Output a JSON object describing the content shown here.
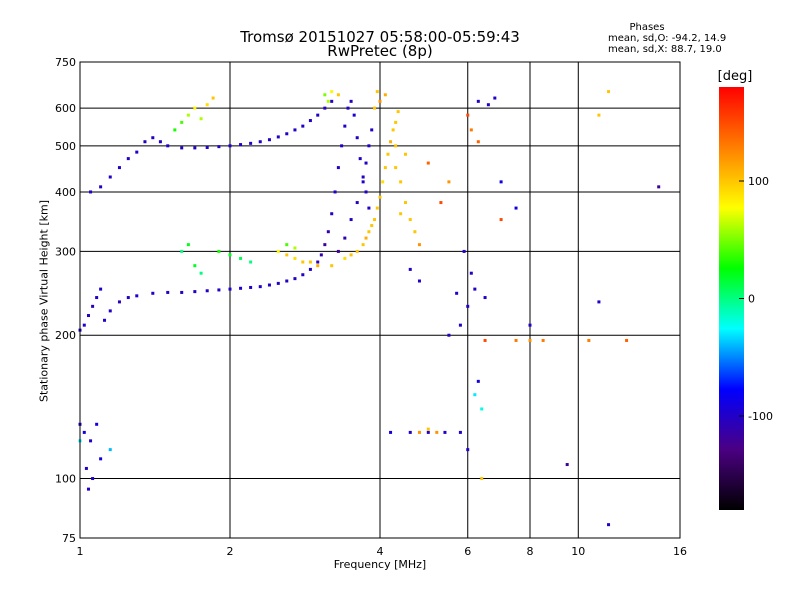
{
  "chart_data": {
    "type": "scatter",
    "title": "Tromsø 20151027 05:58:00-05:59:43",
    "subtitle": "RwPretec (8p)",
    "xlabel": "Frequency [MHz]",
    "ylabel": "Stationary phase Virtual Height [km]",
    "x_scale": "log",
    "y_scale": "log",
    "xlim": [
      1,
      16
    ],
    "ylim": [
      75,
      750
    ],
    "x_ticks": [
      1,
      2,
      4,
      6,
      8,
      10,
      16
    ],
    "x_tick_labels": [
      "1",
      "2",
      "4",
      "6",
      "8",
      "10",
      "16"
    ],
    "y_ticks": [
      75,
      100,
      200,
      300,
      400,
      500,
      600,
      750
    ],
    "y_tick_labels": [
      "75",
      "100",
      "200",
      "300",
      "400",
      "500",
      "600",
      "750"
    ],
    "grid": true,
    "phases_box": {
      "title": "Phases",
      "line1": "mean, sd,O: -94.2, 14.9",
      "line2": "mean, sd,X:  88.7, 19.0"
    },
    "colorbar": {
      "label": "[deg]",
      "ticks": [
        100,
        0,
        -100
      ],
      "tick_labels": [
        "100",
        "0",
        "-100"
      ],
      "range": [
        -180,
        180
      ],
      "colors": [
        "#000000",
        "#4b0082",
        "#0000ff",
        "#00ffff",
        "#00ff00",
        "#ffff00",
        "#ff7f00",
        "#ff0000"
      ]
    },
    "series": [
      {
        "points": [
          [
            1.0,
            205,
            -100
          ],
          [
            1.02,
            210,
            -95
          ],
          [
            1.04,
            220,
            -100
          ],
          [
            1.06,
            230,
            -105
          ],
          [
            1.08,
            240,
            -100
          ],
          [
            1.1,
            250,
            -95
          ],
          [
            1.12,
            215,
            -100
          ],
          [
            1.15,
            225,
            -100
          ],
          [
            1.2,
            235,
            -105
          ],
          [
            1.25,
            240,
            -100
          ],
          [
            1.3,
            242,
            -98
          ],
          [
            1.4,
            245,
            -100
          ],
          [
            1.5,
            246,
            -100
          ],
          [
            1.6,
            246,
            -102
          ],
          [
            1.7,
            247,
            -100
          ],
          [
            1.8,
            248,
            -100
          ],
          [
            1.9,
            249,
            -100
          ],
          [
            2.0,
            250,
            -100
          ],
          [
            2.1,
            251,
            -100
          ],
          [
            2.2,
            252,
            -98
          ],
          [
            2.3,
            253,
            -100
          ],
          [
            2.4,
            255,
            -100
          ],
          [
            2.5,
            257,
            -100
          ],
          [
            2.6,
            260,
            -100
          ],
          [
            2.7,
            263,
            -100
          ],
          [
            2.8,
            268,
            -100
          ],
          [
            2.9,
            275,
            -100
          ],
          [
            3.0,
            285,
            -105
          ],
          [
            3.05,
            295,
            -110
          ],
          [
            3.1,
            310,
            -120
          ],
          [
            3.15,
            330,
            -110
          ],
          [
            3.2,
            360,
            -100
          ],
          [
            3.25,
            400,
            -100
          ],
          [
            3.3,
            450,
            -100
          ],
          [
            3.35,
            500,
            -100
          ],
          [
            3.4,
            550,
            -100
          ],
          [
            3.45,
            600,
            -100
          ],
          [
            3.5,
            620,
            -100
          ],
          [
            3.55,
            580,
            -95
          ],
          [
            3.6,
            520,
            -100
          ],
          [
            3.65,
            470,
            -100
          ],
          [
            3.7,
            430,
            -100
          ],
          [
            3.75,
            400,
            -100
          ],
          [
            3.8,
            370,
            -100
          ],
          [
            3.3,
            300,
            -120
          ],
          [
            3.4,
            320,
            -110
          ],
          [
            3.5,
            350,
            -100
          ],
          [
            3.6,
            380,
            -105
          ],
          [
            3.7,
            420,
            -100
          ],
          [
            3.75,
            460,
            -100
          ],
          [
            3.8,
            500,
            -100
          ],
          [
            3.85,
            540,
            -100
          ],
          [
            1.05,
            400,
            -100
          ],
          [
            1.1,
            410,
            -100
          ],
          [
            1.15,
            430,
            -100
          ],
          [
            1.2,
            450,
            -100
          ],
          [
            1.25,
            470,
            -100
          ],
          [
            1.3,
            485,
            -100
          ],
          [
            1.35,
            510,
            -100
          ],
          [
            1.4,
            520,
            -100
          ],
          [
            1.45,
            510,
            -100
          ],
          [
            1.5,
            500,
            -100
          ],
          [
            1.6,
            495,
            -100
          ],
          [
            1.7,
            495,
            -100
          ],
          [
            1.8,
            496,
            -100
          ],
          [
            1.9,
            498,
            -100
          ],
          [
            2.0,
            500,
            -100
          ],
          [
            2.1,
            503,
            -100
          ],
          [
            2.2,
            506,
            -100
          ],
          [
            2.3,
            510,
            -100
          ],
          [
            2.4,
            515,
            -100
          ],
          [
            2.5,
            522,
            -100
          ],
          [
            2.6,
            530,
            -100
          ],
          [
            2.7,
            540,
            -100
          ],
          [
            2.8,
            550,
            -100
          ],
          [
            2.9,
            565,
            -100
          ],
          [
            3.0,
            580,
            -100
          ],
          [
            3.1,
            600,
            -100
          ],
          [
            3.2,
            620,
            -100
          ],
          [
            1.0,
            130,
            -100
          ],
          [
            1.02,
            125,
            -90
          ],
          [
            1.05,
            120,
            -100
          ],
          [
            1.08,
            130,
            -90
          ],
          [
            1.03,
            105,
            -100
          ],
          [
            1.06,
            100,
            -100
          ],
          [
            1.1,
            110,
            -90
          ],
          [
            1.04,
            95,
            -100
          ],
          [
            5.5,
            200,
            -100
          ],
          [
            5.8,
            210,
            -100
          ],
          [
            6.0,
            230,
            -100
          ],
          [
            6.2,
            250,
            -100
          ],
          [
            6.1,
            270,
            -100
          ],
          [
            5.9,
            300,
            -100
          ],
          [
            6.3,
            160,
            -90
          ],
          [
            6.5,
            240,
            -100
          ],
          [
            6.3,
            620,
            -100
          ],
          [
            6.6,
            610,
            -100
          ],
          [
            6.8,
            630,
            -100
          ],
          [
            7.0,
            420,
            -90
          ],
          [
            7.5,
            370,
            -90
          ],
          [
            8.0,
            210,
            -100
          ],
          [
            9.5,
            107,
            -120
          ],
          [
            11.0,
            235,
            -100
          ],
          [
            11.5,
            80,
            -100
          ],
          [
            14.5,
            410,
            -120
          ],
          [
            4.6,
            275,
            -100
          ],
          [
            4.8,
            260,
            -100
          ],
          [
            4.2,
            125,
            -90
          ],
          [
            4.6,
            125,
            -100
          ],
          [
            5.0,
            125,
            -100
          ],
          [
            5.4,
            125,
            -100
          ],
          [
            5.8,
            125,
            -100
          ],
          [
            6.0,
            115,
            -100
          ],
          [
            5.7,
            245,
            -100
          ]
        ]
      },
      {
        "points": [
          [
            1.6,
            560,
            40
          ],
          [
            1.65,
            580,
            60
          ],
          [
            1.7,
            600,
            80
          ],
          [
            1.75,
            570,
            60
          ],
          [
            1.8,
            610,
            90
          ],
          [
            1.55,
            540,
            30
          ],
          [
            1.85,
            630,
            100
          ],
          [
            2.5,
            300,
            80
          ],
          [
            2.6,
            295,
            100
          ],
          [
            2.7,
            290,
            90
          ],
          [
            2.8,
            285,
            100
          ],
          [
            2.9,
            285,
            100
          ],
          [
            3.0,
            280,
            110
          ],
          [
            3.2,
            280,
            100
          ],
          [
            3.4,
            290,
            90
          ],
          [
            3.5,
            295,
            100
          ],
          [
            3.6,
            300,
            100
          ],
          [
            3.7,
            310,
            100
          ],
          [
            3.75,
            320,
            110
          ],
          [
            3.8,
            330,
            100
          ],
          [
            3.85,
            340,
            100
          ],
          [
            3.9,
            350,
            100
          ],
          [
            3.95,
            370,
            100
          ],
          [
            4.0,
            390,
            100
          ],
          [
            4.05,
            420,
            90
          ],
          [
            4.1,
            450,
            100
          ],
          [
            4.15,
            480,
            100
          ],
          [
            4.2,
            510,
            110
          ],
          [
            4.25,
            540,
            100
          ],
          [
            4.3,
            560,
            100
          ],
          [
            4.35,
            590,
            100
          ],
          [
            3.9,
            600,
            100
          ],
          [
            4.0,
            620,
            120
          ],
          [
            4.1,
            640,
            110
          ],
          [
            3.95,
            650,
            100
          ],
          [
            4.3,
            450,
            100
          ],
          [
            4.4,
            420,
            100
          ],
          [
            4.5,
            380,
            100
          ],
          [
            4.6,
            350,
            100
          ],
          [
            4.7,
            330,
            100
          ],
          [
            4.8,
            310,
            120
          ],
          [
            4.4,
            360,
            100
          ],
          [
            4.5,
            480,
            100
          ],
          [
            4.3,
            500,
            100
          ],
          [
            5.0,
            460,
            140
          ],
          [
            5.3,
            380,
            150
          ],
          [
            5.5,
            420,
            120
          ],
          [
            6.0,
            580,
            150
          ],
          [
            6.1,
            540,
            130
          ],
          [
            6.3,
            510,
            140
          ],
          [
            6.5,
            195,
            150
          ],
          [
            7.0,
            350,
            150
          ],
          [
            7.5,
            195,
            130
          ],
          [
            8.0,
            195,
            120
          ],
          [
            8.5,
            195,
            130
          ],
          [
            10.5,
            195,
            130
          ],
          [
            11.0,
            580,
            100
          ],
          [
            11.5,
            650,
            100
          ],
          [
            12.5,
            195,
            140
          ],
          [
            4.8,
            125,
            120
          ],
          [
            5.0,
            127,
            100
          ],
          [
            5.2,
            125,
            120
          ],
          [
            6.4,
            100,
            100
          ],
          [
            3.2,
            650,
            80
          ],
          [
            3.3,
            640,
            100
          ]
        ]
      },
      {
        "points": [
          [
            1.9,
            300,
            30
          ],
          [
            2.0,
            295,
            20
          ],
          [
            2.1,
            290,
            10
          ],
          [
            2.2,
            285,
            0
          ],
          [
            1.7,
            280,
            20
          ],
          [
            1.75,
            270,
            0
          ],
          [
            2.6,
            310,
            40
          ],
          [
            2.7,
            305,
            60
          ],
          [
            3.1,
            640,
            50
          ],
          [
            3.15,
            620,
            60
          ],
          [
            1.6,
            300,
            0
          ],
          [
            1.65,
            310,
            20
          ],
          [
            6.2,
            150,
            -30
          ],
          [
            6.4,
            140,
            -20
          ],
          [
            1.15,
            115,
            -40
          ],
          [
            1.0,
            120,
            -30
          ]
        ]
      }
    ]
  }
}
